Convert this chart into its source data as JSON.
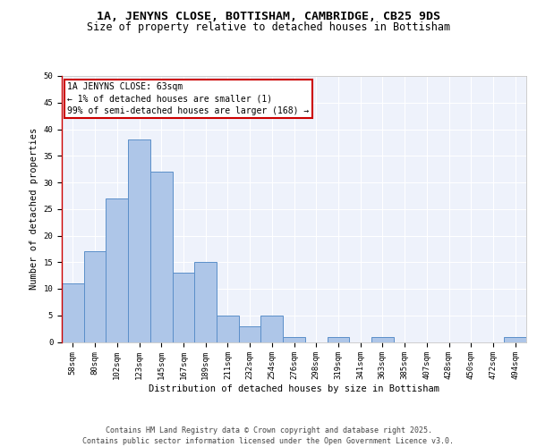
{
  "title_line1": "1A, JENYNS CLOSE, BOTTISHAM, CAMBRIDGE, CB25 9DS",
  "title_line2": "Size of property relative to detached houses in Bottisham",
  "xlabel": "Distribution of detached houses by size in Bottisham",
  "ylabel": "Number of detached properties",
  "bar_color": "#aec6e8",
  "bar_edge_color": "#5b8fc9",
  "background_color": "#eef2fb",
  "grid_color": "#ffffff",
  "categories": [
    "58sqm",
    "80sqm",
    "102sqm",
    "123sqm",
    "145sqm",
    "167sqm",
    "189sqm",
    "211sqm",
    "232sqm",
    "254sqm",
    "276sqm",
    "298sqm",
    "319sqm",
    "341sqm",
    "363sqm",
    "385sqm",
    "407sqm",
    "428sqm",
    "450sqm",
    "472sqm",
    "494sqm"
  ],
  "values": [
    11,
    17,
    27,
    38,
    32,
    13,
    15,
    5,
    3,
    5,
    1,
    0,
    1,
    0,
    1,
    0,
    0,
    0,
    0,
    0,
    1
  ],
  "ylim": [
    0,
    50
  ],
  "yticks": [
    0,
    5,
    10,
    15,
    20,
    25,
    30,
    35,
    40,
    45,
    50
  ],
  "annotation_box_text": "1A JENYNS CLOSE: 63sqm\n← 1% of detached houses are smaller (1)\n99% of semi-detached houses are larger (168) →",
  "annotation_box_color": "#ffffff",
  "annotation_box_edge_color": "#cc0000",
  "footer_line1": "Contains HM Land Registry data © Crown copyright and database right 2025.",
  "footer_line2": "Contains public sector information licensed under the Open Government Licence v3.0.",
  "title_fontsize": 9.5,
  "subtitle_fontsize": 8.5,
  "axis_label_fontsize": 7.5,
  "tick_fontsize": 6.5,
  "annotation_fontsize": 7,
  "footer_fontsize": 6
}
